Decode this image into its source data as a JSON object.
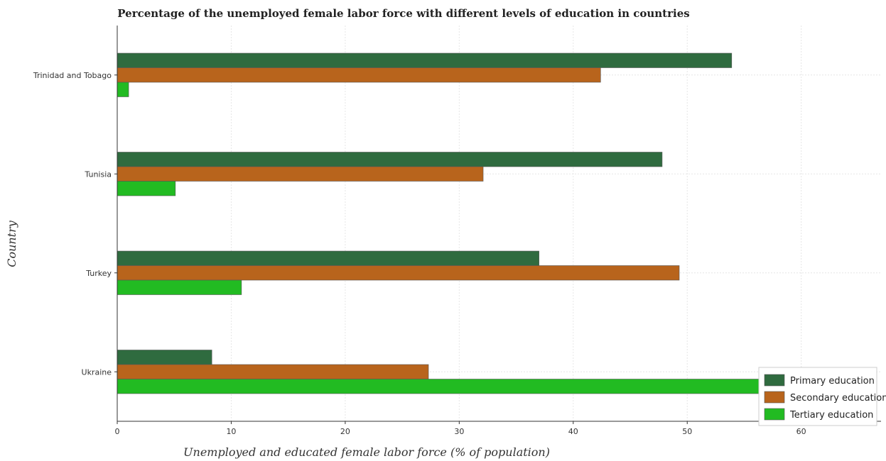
{
  "colors": {
    "primary": "#2f6b3f",
    "secondary": "#b8641c",
    "tertiary": "#22bb22",
    "bar_stroke": "#555555"
  },
  "chart_data": {
    "type": "bar",
    "orientation": "horizontal",
    "title": "Percentage of the unemployed female labor force with different levels of education in countries",
    "xlabel": "Unemployed and educated female labor force (% of population)",
    "ylabel": "Country",
    "xlim": [
      0,
      67
    ],
    "xticks": [
      0,
      10,
      20,
      30,
      40,
      50,
      60
    ],
    "grid": true,
    "legend_position": "bottom-right",
    "categories": [
      "Trinidad and Tobago",
      "Tunisia",
      "Turkey",
      "Ukraine"
    ],
    "series": [
      {
        "name": "Primary education",
        "values": [
          53.9,
          47.8,
          37.0,
          8.3
        ]
      },
      {
        "name": "Secondary education",
        "values": [
          42.4,
          32.1,
          49.3,
          27.3
        ]
      },
      {
        "name": "Tertiary education",
        "values": [
          1.0,
          5.1,
          10.9,
          64.4
        ]
      }
    ]
  }
}
